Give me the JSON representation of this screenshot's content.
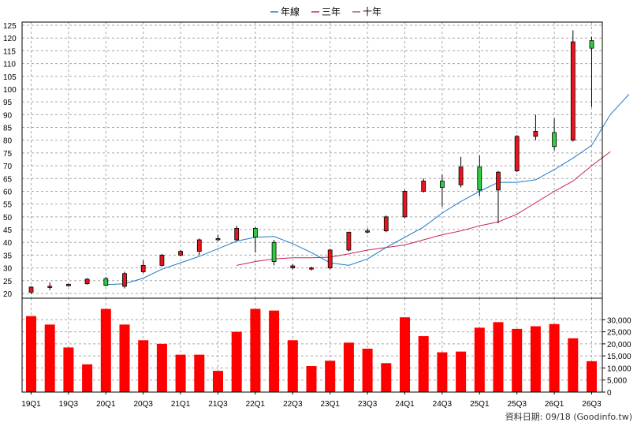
{
  "chart_data": [
    {
      "type": "candlestick",
      "legend": [
        {
          "name": "年線",
          "color": "#1f78c8"
        },
        {
          "name": "三年",
          "color": "#cc2255"
        },
        {
          "name": "十年",
          "color": "#9a5a8a"
        }
      ],
      "legend_position": "top-center",
      "grid": true,
      "ylim": [
        20,
        125
      ],
      "yticks": [
        20,
        25,
        30,
        35,
        40,
        45,
        50,
        55,
        60,
        65,
        70,
        75,
        80,
        85,
        90,
        95,
        100,
        105,
        110,
        115,
        120,
        125
      ],
      "candles": [
        {
          "o": 20.5,
          "h": 22.8,
          "l": 19.8,
          "c": 22.5
        },
        {
          "o": 22.6,
          "h": 24.3,
          "l": 21.3,
          "c": 22.8
        },
        {
          "o": 23.0,
          "h": 23.8,
          "l": 22.8,
          "c": 23.6
        },
        {
          "o": 23.8,
          "h": 26.0,
          "l": 23.5,
          "c": 25.6
        },
        {
          "o": 25.8,
          "h": 26.5,
          "l": 22.8,
          "c": 23.2
        },
        {
          "o": 22.8,
          "h": 28.5,
          "l": 22.0,
          "c": 27.8
        },
        {
          "o": 28.5,
          "h": 33.0,
          "l": 28.0,
          "c": 31.0
        },
        {
          "o": 31.0,
          "h": 35.5,
          "l": 30.5,
          "c": 35.0
        },
        {
          "o": 35.0,
          "h": 37.0,
          "l": 34.5,
          "c": 36.5
        },
        {
          "o": 36.5,
          "h": 41.5,
          "l": 35.0,
          "c": 41.0
        },
        {
          "o": 41.0,
          "h": 43.0,
          "l": 40.5,
          "c": 41.5
        },
        {
          "o": 41.0,
          "h": 46.5,
          "l": 40.5,
          "c": 45.5
        },
        {
          "o": 45.5,
          "h": 46.0,
          "l": 36.0,
          "c": 42.0
        },
        {
          "o": 40.0,
          "h": 41.0,
          "l": 31.0,
          "c": 32.5
        },
        {
          "o": 30.0,
          "h": 31.5,
          "l": 29.5,
          "c": 30.8
        },
        {
          "o": 29.8,
          "h": 30.5,
          "l": 29.0,
          "c": 30.0
        },
        {
          "o": 30.0,
          "h": 37.5,
          "l": 29.5,
          "c": 37.0
        },
        {
          "o": 37.0,
          "h": 44.0,
          "l": 36.5,
          "c": 44.0
        },
        {
          "o": 44.0,
          "h": 45.5,
          "l": 43.5,
          "c": 44.5
        },
        {
          "o": 44.5,
          "h": 50.5,
          "l": 44.0,
          "c": 50.0
        },
        {
          "o": 50.0,
          "h": 60.5,
          "l": 49.5,
          "c": 60.0
        },
        {
          "o": 60.0,
          "h": 65.0,
          "l": 59.5,
          "c": 64.0
        },
        {
          "o": 64.0,
          "h": 66.5,
          "l": 54.0,
          "c": 61.5
        },
        {
          "o": 62.5,
          "h": 73.5,
          "l": 61.5,
          "c": 69.5
        },
        {
          "o": 69.5,
          "h": 74.0,
          "l": 58.0,
          "c": 60.5
        },
        {
          "o": 60.5,
          "h": 68.0,
          "l": 47.5,
          "c": 67.5
        },
        {
          "o": 68.0,
          "h": 82.0,
          "l": 67.5,
          "c": 81.5
        },
        {
          "o": 81.5,
          "h": 90.0,
          "l": 80.0,
          "c": 83.5
        },
        {
          "o": 83.0,
          "h": 88.5,
          "l": 76.0,
          "c": 77.5
        },
        {
          "o": 80.0,
          "h": 123.0,
          "l": 79.5,
          "c": 118.5
        },
        {
          "o": 119.0,
          "h": 120.5,
          "l": 93.0,
          "c": 116.0
        }
      ],
      "lines": [
        {
          "name": "年線",
          "color": "#1f78c8",
          "start": 4,
          "values": [
            23.5,
            23.8,
            26.0,
            29.5,
            32.0,
            34.5,
            37.5,
            40.5,
            42.0,
            42.3,
            39.5,
            36.0,
            32.0,
            31.0,
            33.5,
            38.0,
            42.0,
            46.0,
            51.5,
            56.0,
            60.0,
            63.5,
            63.5,
            64.5,
            68.5,
            73.0,
            78.0,
            90.0,
            98.0
          ]
        },
        {
          "name": "三年",
          "color": "#cc2255",
          "start": 11,
          "values": [
            31.0,
            32.5,
            33.5,
            34.0,
            34.0,
            34.2,
            35.5,
            37.0,
            38.0,
            39.0,
            41.0,
            43.0,
            44.5,
            46.5,
            48.0,
            51.0,
            55.5,
            60.0,
            64.0,
            70.0,
            75.5
          ]
        }
      ],
      "volume": {
        "ylim": [
          0,
          35000
        ],
        "yticks": [
          0,
          5000,
          10000,
          15000,
          20000,
          25000,
          30000
        ],
        "ytick_labels": [
          "0",
          "5,000",
          "10,000",
          "15,000",
          "20,000",
          "25,000",
          "30,000"
        ],
        "color": "#ff0000",
        "values": [
          31500,
          28000,
          18500,
          11500,
          34500,
          28000,
          21500,
          20000,
          15500,
          15500,
          8800,
          25000,
          34500,
          33800,
          21500,
          10800,
          13000,
          20500,
          18000,
          12000,
          31000,
          23200,
          16500,
          16800,
          26700,
          29000,
          26200,
          27300,
          28200,
          22300,
          12800
        ]
      },
      "x_labels": [
        {
          "i": 0,
          "label": "19Q1"
        },
        {
          "i": 2,
          "label": "19Q3"
        },
        {
          "i": 4,
          "label": "20Q1"
        },
        {
          "i": 6,
          "label": "20Q3"
        },
        {
          "i": 8,
          "label": "21Q1"
        },
        {
          "i": 10,
          "label": "21Q3"
        },
        {
          "i": 12,
          "label": "22Q1"
        },
        {
          "i": 14,
          "label": "22Q3"
        },
        {
          "i": 16,
          "label": "23Q1"
        },
        {
          "i": 18,
          "label": "23Q3"
        },
        {
          "i": 20,
          "label": "24Q1"
        },
        {
          "i": 22,
          "label": "24Q3"
        },
        {
          "i": 24,
          "label": "25Q1"
        },
        {
          "i": 26,
          "label": "25Q3"
        },
        {
          "i": 28,
          "label": "26Q1"
        },
        {
          "i": 30,
          "label": "26Q3"
        }
      ],
      "up_color": "#e8141e",
      "down_color": "#2ecc40",
      "footer": "資料日期: 09/18  (Goodinfo.tw)"
    }
  ]
}
